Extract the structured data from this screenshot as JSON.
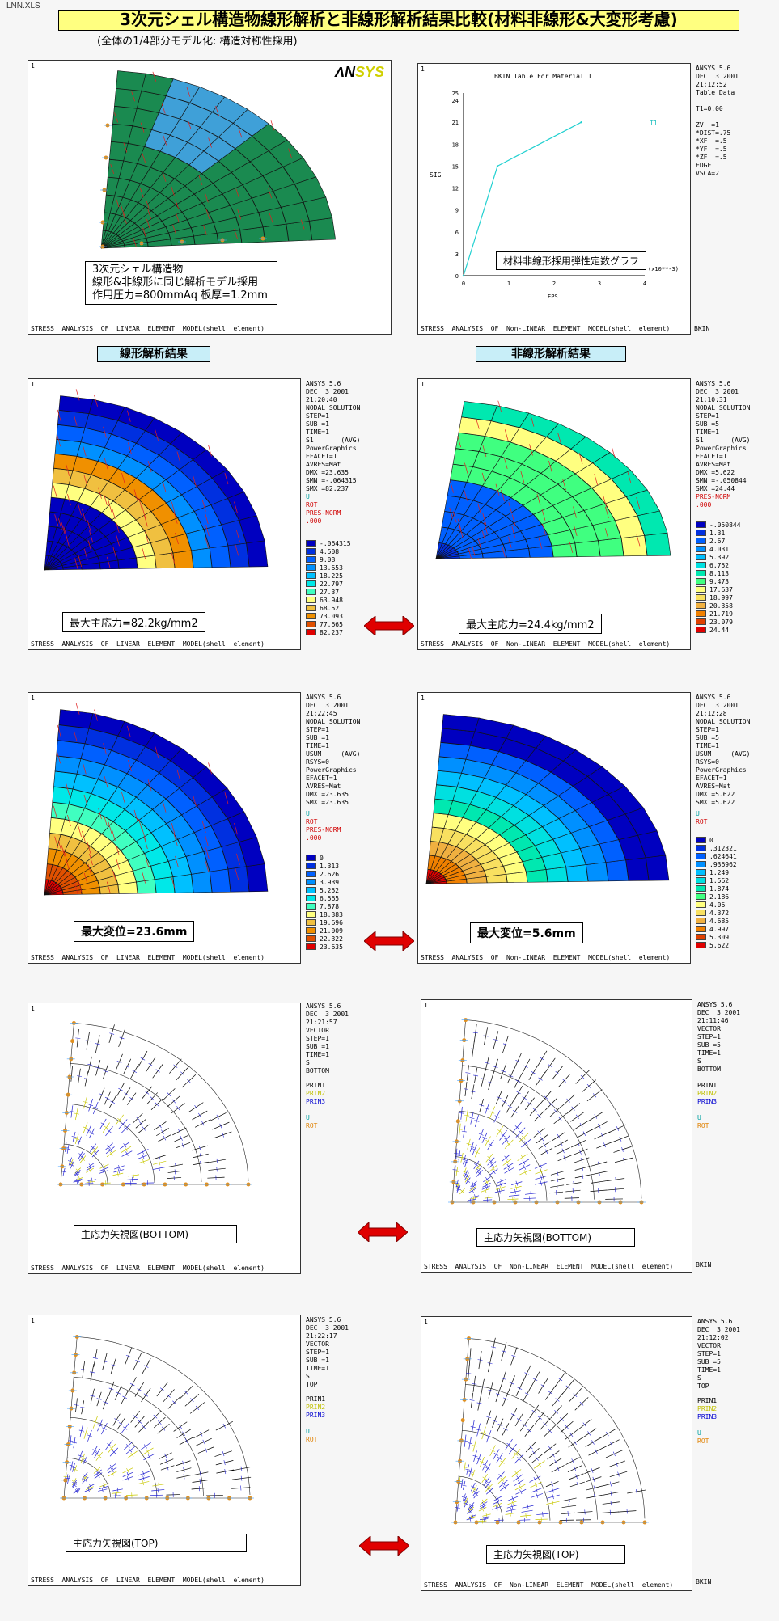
{
  "filename": "LNN.XLS",
  "title": "3次元シェル構造物線形解析と非線形解析結果比較(材料非線形&大変形考慮)",
  "subtitle": "(全体の1/4部分モデル化: 構造対称性採用)",
  "footer_linear": "STRESS  ANALYSIS  OF  LINEAR  ELEMENT  MODEL(shell  element)",
  "footer_nonlinear": "STRESS  ANALYSIS  OF  Non-LINEAR  ELEMENT  MODEL(shell  element)",
  "bkin": "BKIN",
  "section_linear": "線形解析結果",
  "section_nonlinear": "非線形解析結果",
  "panel_index": "1",
  "model": {
    "logo_a": "ΛN",
    "logo_b": "SYS",
    "desc_line1": "3次元シェル構造物",
    "desc_line2": "線形&非線形に同じ解析モデル採用",
    "desc_line3": "作用圧力=800mmAq  板厚=1.2mm"
  },
  "material": {
    "plot_title": "BKIN Table For Material    1",
    "ylabel": "SIG",
    "xlabel": "EPS",
    "xunit": "(x10**-3)",
    "curve_label": "T1",
    "callout": "材料非線形採用弾性定数グラフ",
    "side_text": "ANSYS 5.6\nDEC  3 2001\n21:12:52\nTable Data\n\nT1=0.00\n\nZV  =1\n*DIST=.75\n*XF  =.5\n*YF  =.5\n*ZF  =.5\nEDGE\nVSCA=2",
    "yticks": [
      "0",
      "3",
      "6",
      "9",
      "12",
      "15",
      "18",
      "21",
      "24",
      "25"
    ],
    "xticks": [
      "0",
      "1",
      "2",
      "3",
      "4"
    ]
  },
  "chart_data": {
    "type": "line",
    "title": "BKIN Table For Material    1",
    "xlabel": "EPS",
    "ylabel": "SIG",
    "xlim": [
      0,
      4
    ],
    "ylim": [
      0,
      25
    ],
    "series": [
      {
        "name": "T1",
        "x": [
          0,
          0.75,
          2.6
        ],
        "y": [
          0,
          15,
          21
        ]
      }
    ]
  },
  "s1_linear": {
    "side_text": "ANSYS 5.6\nDEC  3 2001\n21:20:40\nNODAL SOLUTION\nSTEP=1\nSUB =1\nTIME=1\nS1       (AVG)\nPowerGraphics\nEFACET=1\nAVRES=Mat\nDMX =23.635\nSMN =-.064315\nSMX =82.237",
    "u": "U",
    "rot": "ROT",
    "pres": "PRES-NORM",
    "pres_val": ".000",
    "legend": [
      "-.064315",
      "4.508",
      "9.08",
      "13.653",
      "18.225",
      "22.797",
      "27.37",
      "63.948",
      "68.52",
      "73.093",
      "77.665",
      "82.237"
    ],
    "caption": "最大主応力=82.2kg/mm2"
  },
  "s1_nonlinear": {
    "side_text": "ANSYS 5.6\nDEC  3 2001\n21:10:31\nNODAL SOLUTION\nSTEP=1\nSUB =5\nTIME=1\nS1       (AVG)\nPowerGraphics\nEFACET=1\nAVRES=Mat\nDMX =5.622\nSMN =-.050844\nSMX =24.44",
    "pres": "PRES-NORM",
    "pres_val": ".000",
    "legend": [
      "-.050844",
      "1.31",
      "2.67",
      "4.031",
      "5.392",
      "6.752",
      "8.113",
      "9.473",
      "17.637",
      "18.997",
      "20.358",
      "21.719",
      "23.079",
      "24.44"
    ],
    "caption": "最大主応力=24.4kg/mm2"
  },
  "usum_linear": {
    "side_text": "ANSYS 5.6\nDEC  3 2001\n21:22:45\nNODAL SOLUTION\nSTEP=1\nSUB =1\nTIME=1\nUSUM     (AVG)\nRSYS=0\nPowerGraphics\nEFACET=1\nAVRES=Mat\nDMX =23.635\nSMX =23.635",
    "u": "U",
    "rot": "ROT",
    "pres": "PRES-NORM",
    "pres_val": ".000",
    "legend": [
      "0",
      "1.313",
      "2.626",
      "3.939",
      "5.252",
      "6.565",
      "7.878",
      "18.383",
      "19.696",
      "21.009",
      "22.322",
      "23.635"
    ],
    "caption": "最大変位=23.6mm"
  },
  "usum_nonlinear": {
    "side_text": "ANSYS 5.6\nDEC  3 2001\n21:12:28\nNODAL SOLUTION\nSTEP=1\nSUB =5\nTIME=1\nUSUM     (AVG)\nRSYS=0\nPowerGraphics\nEFACET=1\nAVRES=Mat\nDMX =5.622\nSMX =5.622",
    "u": "U",
    "rot": "ROT",
    "legend": [
      "0",
      ".312321",
      ".624641",
      ".936962",
      "1.249",
      "1.562",
      "1.874",
      "2.186",
      "4.06",
      "4.372",
      "4.685",
      "4.997",
      "5.309",
      "5.622"
    ],
    "caption": "最大変位=5.6mm"
  },
  "vec_bottom_linear": {
    "side_text": "ANSYS 5.6\nDEC  3 2001\n21:21:57\nVECTOR\nSTEP=1\nSUB =1\nTIME=1\nS\nBOTTOM",
    "prin1": "PRIN1",
    "prin2": "PRIN2",
    "prin3": "PRIN3",
    "u": "U",
    "rot": "ROT",
    "caption": "主応力矢視図(BOTTOM)"
  },
  "vec_bottom_nonlinear": {
    "side_text": "ANSYS 5.6\nDEC  3 2001\n21:11:46\nVECTOR\nSTEP=1\nSUB =5\nTIME=1\nS\nBOTTOM",
    "prin1": "PRIN1",
    "prin2": "PRIN2",
    "prin3": "PRIN3",
    "u": "U",
    "rot": "ROT",
    "caption": "主応力矢視図(BOTTOM)"
  },
  "vec_top_linear": {
    "side_text": "ANSYS 5.6\nDEC  3 2001\n21:22:17\nVECTOR\nSTEP=1\nSUB =1\nTIME=1\nS\nTOP",
    "prin1": "PRIN1",
    "prin2": "PRIN2",
    "prin3": "PRIN3",
    "u": "U",
    "rot": "ROT",
    "caption": "主応力矢視図(TOP)"
  },
  "vec_top_nonlinear": {
    "side_text": "ANSYS 5.6\nDEC  3 2001\n21:12:02\nVECTOR\nSTEP=1\nSUB =5\nTIME=1\nS\nTOP",
    "prin1": "PRIN1",
    "prin2": "PRIN2",
    "prin3": "PRIN3",
    "u": "U",
    "rot": "ROT",
    "caption": "主応力矢視図(TOP)"
  },
  "legend_colors_12": [
    "#0000c0",
    "#0030e0",
    "#0060ff",
    "#0090ff",
    "#00c0ff",
    "#00e8e8",
    "#40ffc0",
    "#ffff80",
    "#f0c040",
    "#f09000",
    "#e05000",
    "#e00000"
  ],
  "legend_colors_14": [
    "#0000c0",
    "#0030e0",
    "#0060ff",
    "#0090ff",
    "#00c0ff",
    "#00e0e0",
    "#00e8b0",
    "#40ff80",
    "#ffff80",
    "#f8e060",
    "#f0b040",
    "#f08000",
    "#e04000",
    "#e00000"
  ]
}
